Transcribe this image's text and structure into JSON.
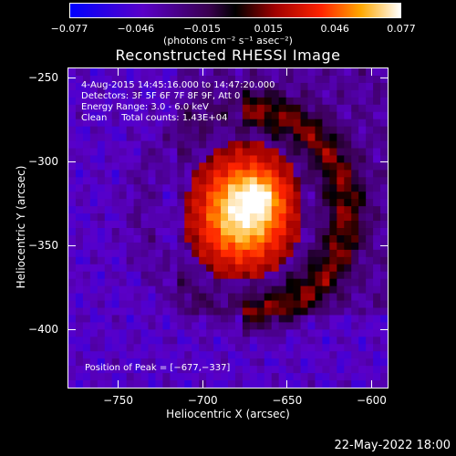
{
  "colorbar": {
    "ticks": [
      "−0.077",
      "−0.046",
      "−0.015",
      "0.015",
      "0.046",
      "0.077"
    ],
    "unit": "(photons cm⁻² s⁻¹ asec⁻²)"
  },
  "info": {
    "line1": "4‑Aug‑2015 14:45:16.000 to 14:47:20.000",
    "line2": "Detectors: 3F 5F 6F 7F 8F 9F, Att 0",
    "line3": "Energy Range: 3.0 ‑ 6.0 keV",
    "line4": "Clean     Total counts: 1.43E+04",
    "peak": "Position of Peak = [−677,−337]"
  },
  "footer": {
    "date": "22‑May‑2022 18:00"
  },
  "chart_data": {
    "type": "heatmap",
    "title": "Reconstructed RHESSI Image",
    "xlabel": "Heliocentric X (arcsec)",
    "ylabel": "Heliocentric Y (arcsec)",
    "xlim": [
      -780,
      -590
    ],
    "ylim": [
      -435,
      -244
    ],
    "x_ticks": [
      "−750",
      "−700",
      "−650",
      "−600"
    ],
    "x_tick_values": [
      -750,
      -700,
      -650,
      -600
    ],
    "y_ticks": [
      "−250",
      "−300",
      "−350",
      "−400"
    ],
    "y_tick_values": [
      -250,
      -300,
      -350,
      -400
    ],
    "value_range": [
      -0.077,
      0.077
    ],
    "peak_position": [
      -677,
      -337
    ],
    "colors": {
      "low": "#0000ff",
      "mid": "#000000",
      "high": "#ffffff"
    }
  }
}
